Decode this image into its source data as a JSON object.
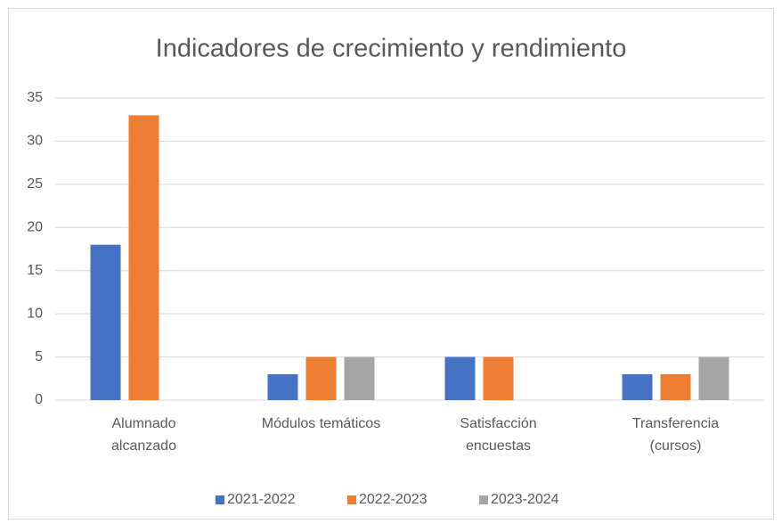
{
  "chart_data": {
    "type": "bar",
    "title": "Indicadores de crecimiento y rendimiento",
    "categories": [
      [
        "Alumnado",
        "alcanzado"
      ],
      [
        "Módulos temáticos"
      ],
      [
        "Satisfacción",
        "encuestas"
      ],
      [
        "Transferencia",
        "(cursos)"
      ]
    ],
    "series": [
      {
        "name": "2021-2022",
        "color": "#4472c4",
        "values": [
          18,
          3,
          5,
          3
        ]
      },
      {
        "name": "2022-2023",
        "color": "#ed7d31",
        "values": [
          33,
          5,
          5,
          3
        ]
      },
      {
        "name": "2023-2024",
        "color": "#a5a5a5",
        "values": [
          null,
          5,
          null,
          5
        ]
      }
    ],
    "ylim": [
      0,
      35
    ],
    "yticks": [
      0,
      5,
      10,
      15,
      20,
      25,
      30,
      35
    ],
    "grid": true,
    "legend": "bottom"
  }
}
